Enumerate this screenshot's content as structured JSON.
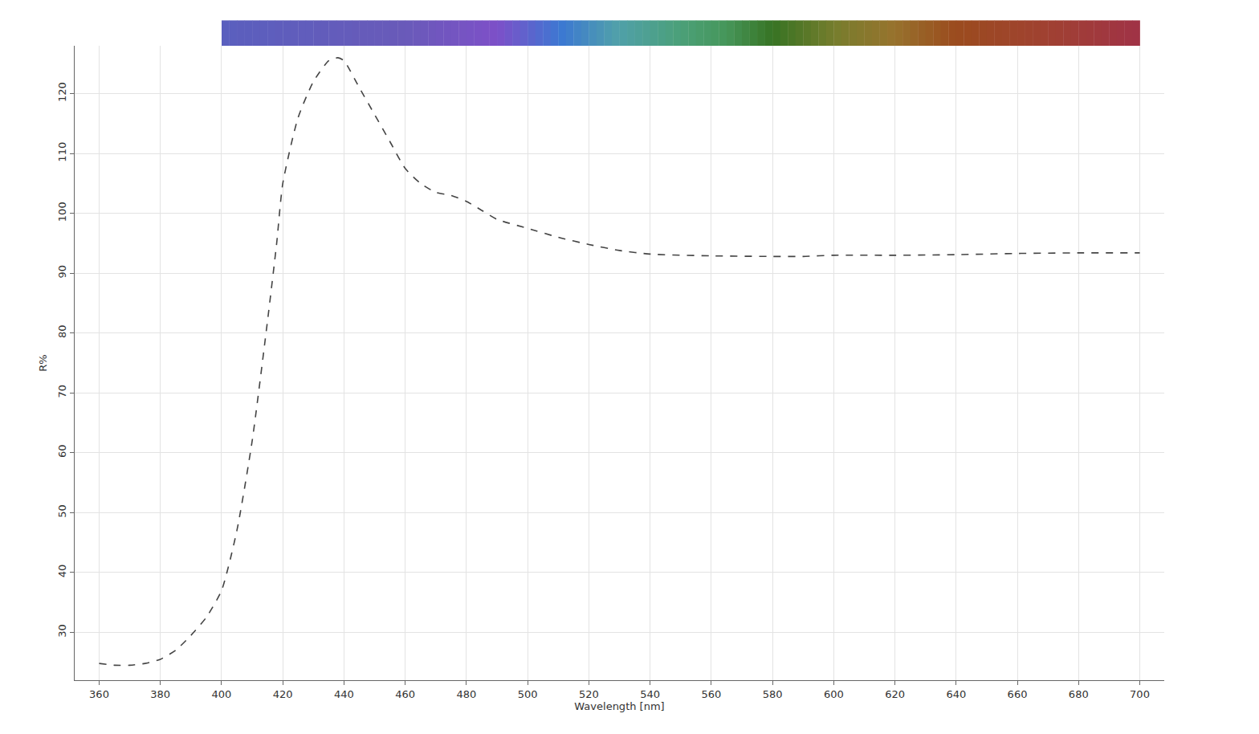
{
  "chart_data": {
    "type": "line",
    "x_label": "Wavelength [nm]",
    "y_label": "R%",
    "x": [
      360,
      365,
      370,
      375,
      380,
      385,
      390,
      395,
      400,
      405,
      410,
      415,
      418,
      420,
      425,
      430,
      435,
      438,
      440,
      445,
      450,
      455,
      460,
      465,
      470,
      475,
      480,
      485,
      490,
      500,
      510,
      520,
      530,
      540,
      560,
      580,
      590,
      600,
      620,
      640,
      660,
      680,
      700
    ],
    "values": [
      24.8,
      24.5,
      24.5,
      24.8,
      25.5,
      27,
      29.5,
      32.5,
      37,
      47,
      62,
      82,
      95,
      105,
      116,
      122,
      125.5,
      126,
      125.5,
      121,
      116.5,
      112,
      107.5,
      105,
      103.5,
      103,
      102,
      100.5,
      99,
      97.5,
      96,
      94.8,
      93.8,
      93.2,
      92.9,
      92.8,
      92.8,
      93,
      93,
      93.1,
      93.3,
      93.4,
      93.4
    ],
    "color": "#444444",
    "line_style": "dash",
    "xlim": [
      352,
      708
    ],
    "xticks": [
      360,
      380,
      400,
      420,
      440,
      460,
      480,
      500,
      520,
      540,
      560,
      580,
      600,
      620,
      640,
      660,
      680,
      700
    ],
    "ylim": [
      22,
      128
    ],
    "yticks": [
      30,
      40,
      50,
      60,
      70,
      80,
      90,
      100,
      110,
      120
    ],
    "grid": true
  }
}
